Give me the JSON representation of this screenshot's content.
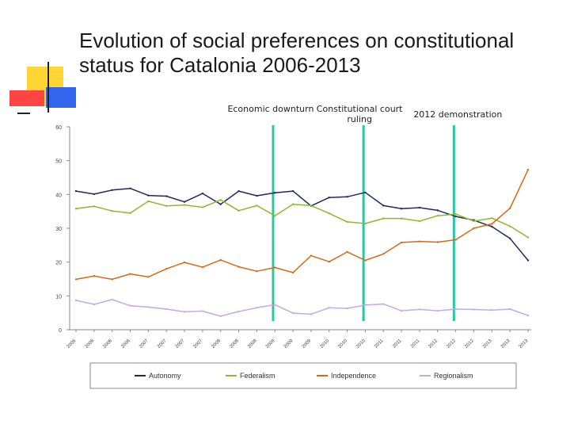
{
  "title": "Evolution of social preferences on constitutional status for Catalonia 2006-2013",
  "chart_data": {
    "type": "line",
    "ylim": [
      0,
      60
    ],
    "yticks": [
      0,
      10,
      20,
      30,
      40,
      50,
      60
    ],
    "x": [
      "2006-1",
      "2006-2",
      "2006-3",
      "2006-4",
      "2007-1",
      "2007-2",
      "2007-3",
      "2007-4",
      "2008-1",
      "2008-2",
      "2008-3",
      "2009-1",
      "2009-2",
      "2009-3",
      "2010-1",
      "2010-2",
      "2010-3",
      "2011-1",
      "2011-2",
      "2011-3",
      "2012-1",
      "2012-2",
      "2012-3",
      "2013-1",
      "2013-2",
      "2013-3"
    ],
    "xtick_labels": [
      "2006",
      "2006",
      "2006",
      "2006",
      "2007",
      "2007",
      "2007",
      "2007",
      "2008",
      "2008",
      "2008",
      "2009",
      "2009",
      "2009",
      "2010",
      "2010",
      "2010",
      "2011",
      "2011",
      "2011",
      "2012",
      "2012",
      "2012",
      "2013",
      "2013",
      "2013"
    ],
    "series": [
      {
        "name": "Autonomy",
        "color": "#1f2a5a",
        "values": [
          41,
          40.1,
          41.3,
          41.8,
          39.7,
          39.5,
          37.8,
          40.3,
          37.1,
          41,
          39.6,
          40.5,
          41,
          36.6,
          39.1,
          39.3,
          40.6,
          36.7,
          35.8,
          36.1,
          35.3,
          33.5,
          32.4,
          30.5,
          27,
          20.5
        ]
      },
      {
        "name": "Federalism",
        "color": "#8db832",
        "values": [
          35.8,
          36.5,
          35.1,
          34.5,
          38,
          36.6,
          36.9,
          36.2,
          38.4,
          35.2,
          36.7,
          33.7,
          37.1,
          36.7,
          34.4,
          31.9,
          31.4,
          32.9,
          32.9,
          32.1,
          33.7,
          34.2,
          32.1,
          33,
          30.6,
          27.3
        ]
      },
      {
        "name": "Independence",
        "color": "#d46a1a",
        "values": [
          14.9,
          15.9,
          14.9,
          16.5,
          15.6,
          18,
          19.9,
          18.5,
          20.6,
          18.6,
          17.3,
          18.4,
          16.9,
          21.9,
          20.1,
          23,
          20.5,
          22.4,
          25.8,
          26.1,
          25.9,
          26.6,
          30,
          31.3,
          35.9,
          47.3
        ]
      },
      {
        "name": "Regionalism",
        "color": "#c8a8e0",
        "values": [
          8.7,
          7.5,
          8.9,
          7.1,
          6.7,
          6.1,
          5.3,
          5.5,
          4,
          5.4,
          6.5,
          7.4,
          4.9,
          4.6,
          6.5,
          6.3,
          7.3,
          7.6,
          5.6,
          6,
          5.6,
          6.1,
          6,
          5.8,
          6.1,
          4.2
        ]
      }
    ],
    "annotations": [
      {
        "text": "Economic downturn",
        "x_index": 10.9
      },
      {
        "text": "Constitutional court ruling",
        "x_index": 15.9
      },
      {
        "text": "2012 demonstration",
        "x_index": 20.9
      }
    ],
    "annotation_color": "#2ec4a6",
    "legend_position": "bottom"
  }
}
